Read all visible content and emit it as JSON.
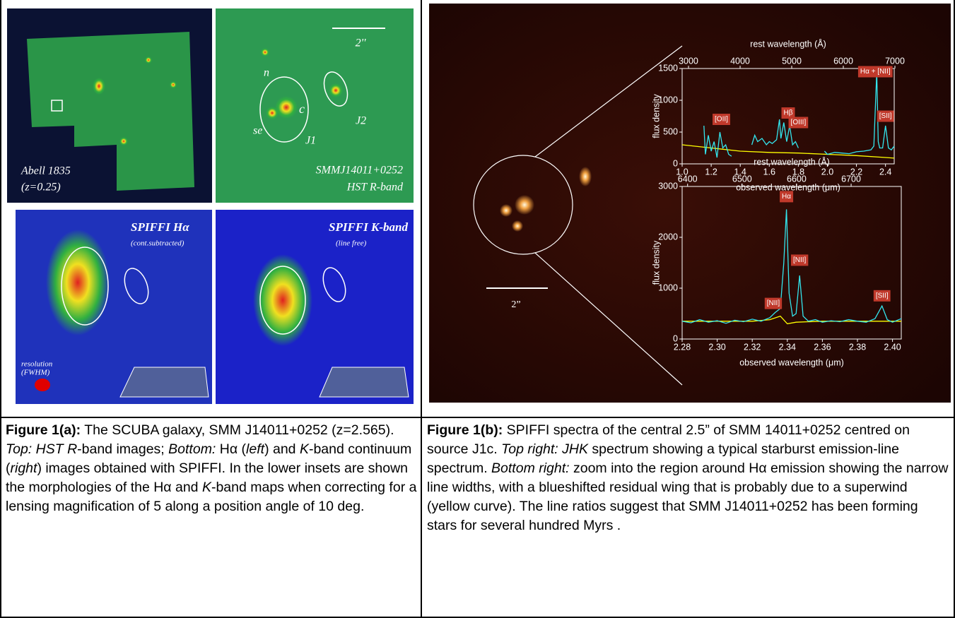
{
  "figure_a": {
    "abell": {
      "name": "Abell 1835",
      "z": "(z=0.25)"
    },
    "hst": {
      "scale": "2''",
      "labels": [
        "n",
        "c",
        "se",
        "J1",
        "J2"
      ],
      "name": "SMMJ14011+0252",
      "band": "HST R-band"
    },
    "halpha": {
      "title": "SPIFFI Hα",
      "note": "(cont.subtracted)",
      "resolution": "resolution",
      "fwhm": "(FWHM)"
    },
    "kband": {
      "title": "SPIFFI K-band",
      "note": "(line free)"
    }
  },
  "figure_b": {
    "scale": "2”"
  },
  "chart_data": [
    {
      "type": "line",
      "x2_label": "rest wavelength (Å)",
      "x_label": "observed wavelength (μm)",
      "y_label": "flux density",
      "xlim": [
        1.0,
        2.46
      ],
      "xticks": [
        {
          "value": 1.0,
          "label": "1.0"
        },
        1.2,
        1.4,
        1.6,
        1.8,
        {
          "value": 2.0,
          "label": "2.0"
        },
        2.2,
        2.4
      ],
      "x2lim": [
        2877,
        6986
      ],
      "x2ticks": [
        3000,
        4000,
        5000,
        6000,
        7000
      ],
      "ylim": [
        0,
        1500
      ],
      "yticks": [
        0,
        500,
        1000,
        1500
      ],
      "series": [
        {
          "color": "#ffff00",
          "x": [
            1.0,
            1.2,
            1.4,
            1.6,
            1.8,
            2.0,
            2.2,
            2.4,
            2.46
          ],
          "values": [
            300,
            250,
            200,
            180,
            170,
            150,
            130,
            100,
            90
          ]
        },
        {
          "color": "#33e6ee",
          "x": [
            1.15,
            1.16,
            1.18,
            1.2,
            1.22,
            1.24,
            1.26,
            1.28,
            1.3,
            1.32,
            1.34,
            1.4,
            1.48,
            1.5,
            1.52,
            1.55,
            1.58,
            1.6,
            1.62,
            1.65,
            1.67,
            1.68,
            1.7,
            1.72,
            1.74,
            1.76,
            1.78,
            1.8,
            1.9,
            1.98,
            2.0,
            2.05,
            2.1,
            2.15,
            2.2,
            2.25,
            2.3,
            2.32,
            2.34,
            2.35,
            2.36,
            2.38,
            2.4,
            2.42,
            2.44,
            2.46
          ],
          "values": [
            600,
            150,
            450,
            200,
            350,
            100,
            500,
            250,
            300,
            150,
            120,
            null,
            300,
            450,
            350,
            400,
            300,
            350,
            320,
            380,
            700,
            400,
            650,
            350,
            600,
            300,
            350,
            250,
            null,
            200,
            150,
            180,
            170,
            160,
            190,
            200,
            220,
            280,
            1450,
            350,
            250,
            250,
            600,
            250,
            220,
            280
          ]
        }
      ],
      "annotations": [
        {
          "text": "[OII]",
          "x": 1.27,
          "y": 700
        },
        {
          "text": "Hβ",
          "x": 1.73,
          "y": 800
        },
        {
          "text": "[OIII]",
          "x": 1.8,
          "y": 650
        },
        {
          "text": "Hα + [NII]",
          "x": 2.33,
          "y": 1450
        },
        {
          "text": "[SII]",
          "x": 2.4,
          "y": 750
        }
      ]
    },
    {
      "type": "line",
      "x2_label": "rest wavelength (Å)",
      "x_label": "observed wavelength (μm)",
      "y_label": "flux density",
      "xlim": [
        2.28,
        2.405
      ],
      "xticks": [
        2.28,
        {
          "value": 2.3,
          "label": "2.30"
        },
        2.32,
        2.34,
        2.36,
        2.38,
        {
          "value": 2.4,
          "label": "2.40"
        }
      ],
      "x2lim": [
        6390,
        6792
      ],
      "x2ticks": [
        6400,
        6500,
        6600,
        6700
      ],
      "ylim": [
        0,
        3000
      ],
      "yticks": [
        0,
        1000,
        2000,
        3000
      ],
      "series": [
        {
          "color": "#ffff00",
          "x": [
            2.28,
            2.32,
            2.33,
            2.336,
            2.34,
            2.345,
            2.36,
            2.405
          ],
          "values": [
            350,
            350,
            380,
            450,
            300,
            330,
            350,
            350
          ]
        },
        {
          "color": "#33e6ee",
          "x": [
            2.28,
            2.285,
            2.29,
            2.295,
            2.3,
            2.305,
            2.31,
            2.315,
            2.32,
            2.325,
            2.33,
            2.333,
            2.336,
            2.338,
            2.3395,
            2.341,
            2.343,
            2.345,
            2.347,
            2.349,
            2.352,
            2.356,
            2.36,
            2.365,
            2.37,
            2.375,
            2.38,
            2.385,
            2.39,
            2.394,
            2.397,
            2.4,
            2.405
          ],
          "values": [
            350,
            320,
            380,
            330,
            360,
            310,
            370,
            340,
            390,
            350,
            420,
            520,
            600,
            1500,
            2550,
            900,
            450,
            500,
            1250,
            450,
            350,
            380,
            330,
            360,
            340,
            380,
            350,
            330,
            400,
            650,
            380,
            330,
            400
          ]
        }
      ],
      "annotations": [
        {
          "text": "Hα",
          "x": 2.3395,
          "y": 2800
        },
        {
          "text": "[NII]",
          "x": 2.347,
          "y": 1550
        },
        {
          "text": "[NII]",
          "x": 2.332,
          "y": 700
        },
        {
          "text": "[SII]",
          "x": 2.394,
          "y": 850
        }
      ]
    }
  ],
  "captions": {
    "left": [
      "Figure 1(a):",
      " The SCUBA galaxy, SMM J14011+0252 (z=2.565). ",
      "Top: HST R",
      "-band images; ",
      "Bottom:",
      " Hα (",
      "left",
      ") and ",
      "K",
      "-band continuum (",
      "right",
      ") images obtained with SPIFFI. In the lower insets are shown the morphologies of the Hα and ",
      "K",
      "-band maps when correcting for a lensing magnification of 5 along a position angle of 10 deg."
    ],
    "right": [
      "Figure 1(b):",
      " SPIFFI spectra of the central 2.5” of SMM 14011+0252 centred on source J1c. ",
      "Top right: JHK",
      " spectrum showing a typical starburst emission-line spectrum. ",
      "Bottom right:",
      " zoom into the region around Hα emission showing the narrow line widths, with a blueshifted residual wing that is probably due to a superwind (yellow curve). The line ratios suggest that SMM J14011+0252 has been forming stars for several hundred Myrs ."
    ]
  }
}
